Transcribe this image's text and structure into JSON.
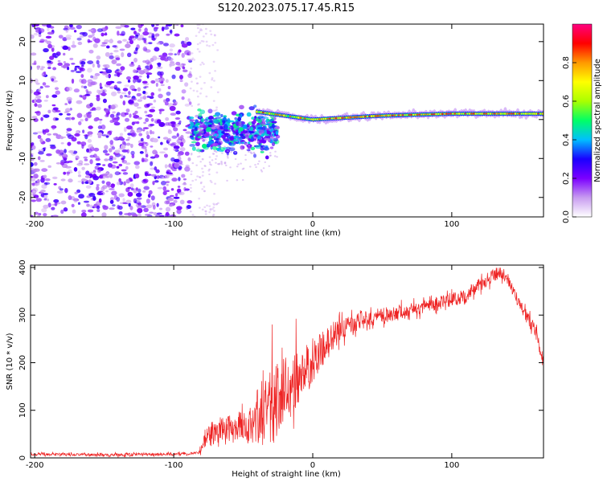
{
  "figure_title": "S120.2023.075.17.45.R15",
  "chart_data": [
    {
      "type": "heatmap",
      "title": "S120.2023.075.17.45.R15",
      "xlabel": "Height of straight line (km)",
      "ylabel": "Frequency (Hz)",
      "xlim": [
        -203,
        166
      ],
      "ylim": [
        -25,
        24.5
      ],
      "x_ticks": [
        -200,
        -100,
        0,
        100
      ],
      "y_ticks": [
        -20,
        -10,
        0,
        10,
        20
      ],
      "grid": false,
      "colorbar": {
        "label": "Normalized spectral amplitude",
        "range": [
          0,
          1
        ],
        "ticks": [
          0.0,
          0.2,
          0.4,
          0.6,
          0.8
        ],
        "tick_labels": [
          "0.0",
          "0.2",
          "0.4",
          "0.6",
          "0.8"
        ],
        "colors": [
          "#ffffff",
          "#c89cf0",
          "#7b00ff",
          "#1a00ff",
          "#00bfff",
          "#00ff66",
          "#aaff00",
          "#ffff00",
          "#ff9900",
          "#ff0000",
          "#ff0080"
        ]
      },
      "regions": [
        {
          "name": "broadband noise",
          "x": [
            -203,
            -88
          ],
          "freq": [
            -25,
            24.5
          ],
          "amplitude": 0.15
        },
        {
          "name": "scattered turbulent echoes",
          "x": [
            -88,
            -25
          ],
          "freq": [
            -12,
            3
          ],
          "amplitude": 0.35
        },
        {
          "name": "narrow signal line",
          "x": [
            -40,
            166
          ],
          "freq_center": [
            2,
            0,
            1,
            1.5,
            1.5
          ],
          "freq_center_x": [
            -40,
            0,
            50,
            100,
            166
          ],
          "amplitude": 0.9
        }
      ]
    },
    {
      "type": "line",
      "xlabel": "Height of straight line (km)",
      "ylabel": "SNR (10 * v/v)",
      "xlim": [
        -203,
        166
      ],
      "ylim": [
        0,
        405
      ],
      "x_ticks": [
        -200,
        -100,
        0,
        100
      ],
      "y_ticks": [
        0,
        100,
        200,
        300,
        400
      ],
      "grid": false,
      "color": "#ee2222",
      "series": [
        {
          "name": "SNR",
          "x": [
            -203,
            -150,
            -100,
            -82,
            -78,
            -70,
            -60,
            -50,
            -40,
            -30,
            -20,
            -10,
            0,
            10,
            20,
            40,
            60,
            80,
            90,
            100,
            110,
            120,
            130,
            135,
            140,
            150,
            160,
            166
          ],
          "values": [
            8,
            6,
            8,
            10,
            40,
            55,
            60,
            65,
            75,
            110,
            140,
            170,
            200,
            240,
            270,
            295,
            305,
            318,
            325,
            332,
            340,
            365,
            382,
            392,
            378,
            315,
            270,
            200
          ],
          "noise": [
            3,
            3,
            3,
            3,
            18,
            28,
            32,
            36,
            45,
            90,
            70,
            60,
            48,
            35,
            22,
            16,
            15,
            14,
            14,
            15,
            16,
            15,
            14,
            13,
            12,
            13,
            15,
            15
          ]
        }
      ]
    }
  ]
}
